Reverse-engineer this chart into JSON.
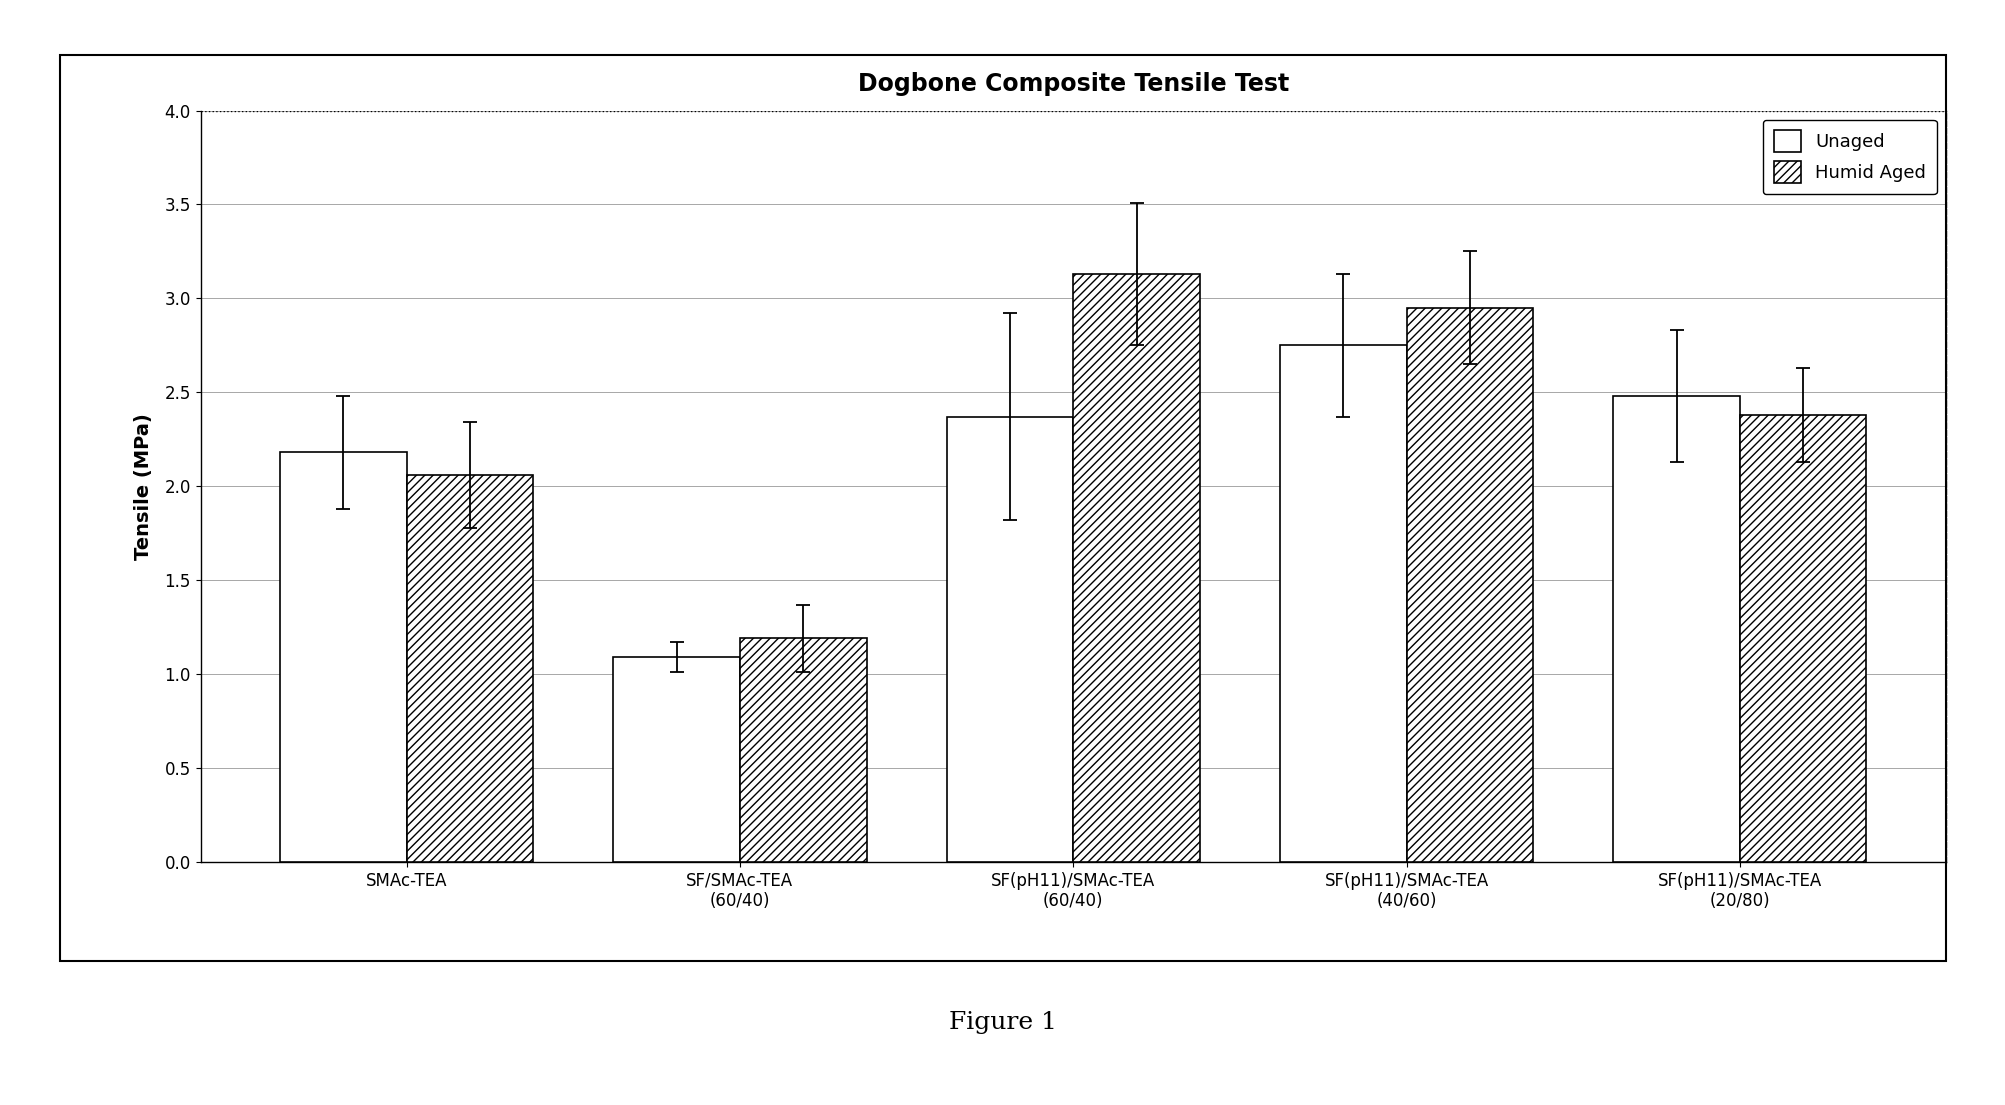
{
  "title": "Dogbone Composite Tensile Test",
  "ylabel": "Tensile (MPa)",
  "figcaption": "Figure 1",
  "ylim": [
    0.0,
    4.0
  ],
  "yticks": [
    0.0,
    0.5,
    1.0,
    1.5,
    2.0,
    2.5,
    3.0,
    3.5,
    4.0
  ],
  "categories": [
    "SMAc-TEA",
    "SF/SMAc-TEA\n(60/40)",
    "SF(pH11)/SMAc-TEA\n(60/40)",
    "SF(pH11)/SMAc-TEA\n(40/60)",
    "SF(pH11)/SMAc-TEA\n(20/80)"
  ],
  "unaged_values": [
    2.18,
    1.09,
    2.37,
    2.75,
    2.48
  ],
  "humid_values": [
    2.06,
    1.19,
    3.13,
    2.95,
    2.38
  ],
  "unaged_errors": [
    0.3,
    0.08,
    0.55,
    0.38,
    0.35
  ],
  "humid_errors": [
    0.28,
    0.18,
    0.38,
    0.3,
    0.25
  ],
  "bar_width": 0.38,
  "unaged_color": "white",
  "humid_color": "white",
  "unaged_edgecolor": "black",
  "humid_edgecolor": "black",
  "hatch_humid": "////",
  "background_color": "white",
  "grid_color": "#999999",
  "title_fontsize": 17,
  "axis_label_fontsize": 14,
  "tick_fontsize": 12,
  "legend_fontsize": 13,
  "caption_fontsize": 18
}
